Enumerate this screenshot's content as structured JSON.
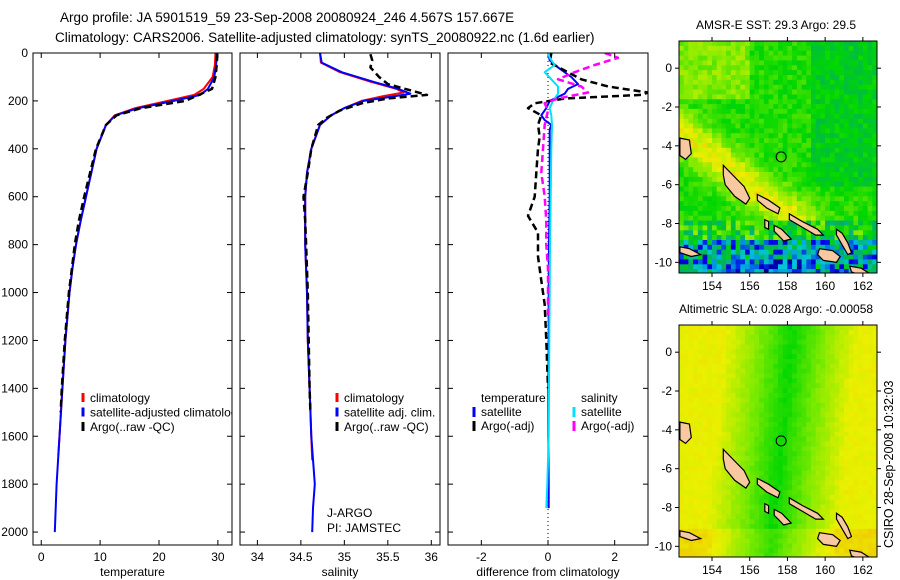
{
  "figure": {
    "title_line1": "Argo profile: JA 5901519_59 23-Sep-2008 20080924_246 4.567S 157.667E",
    "title_line2": "Climatology: CARS2006. Satellite-adjusted climatology: synTS_20080922.nc (1.6d earlier)",
    "side_stamp": "CSIRO 28-Sep-2008 10:32:03",
    "credit_line1": "J-ARGO",
    "credit_line2": "PI: JAMSTEC"
  },
  "colors": {
    "climatology": "#ff0000",
    "satellite": "#0000ff",
    "argo": "#000000",
    "salinity_satellite": "#00e0ff",
    "salinity_argo": "#ff00ff",
    "land": "#f8c8a0"
  },
  "chart_data": [
    {
      "type": "line",
      "name": "temperature-profile",
      "xlabel": "temperature",
      "ylabel": "",
      "xlim": [
        -1.4,
        32.4
      ],
      "ylim": [
        0,
        2054
      ],
      "y_reversed": true,
      "xticks": [
        0,
        10,
        20,
        30
      ],
      "yticks": [
        0,
        200,
        400,
        600,
        800,
        1000,
        1200,
        1400,
        1600,
        1800,
        2000
      ],
      "legend": [
        "climatology",
        "satellite-adjusted climatology",
        "Argo(..raw -QC)"
      ],
      "series": [
        {
          "name": "climatology",
          "color": "#ff0000",
          "style": "solid",
          "depth": [
            0,
            50,
            100,
            150,
            175,
            200,
            230,
            260,
            300,
            400,
            500,
            600,
            700,
            800,
            900,
            1000,
            1200,
            1400,
            1600,
            1680
          ],
          "value": [
            29.6,
            29.5,
            29.1,
            27.6,
            26.0,
            21.5,
            16,
            12.5,
            11,
            9.4,
            8.5,
            7.6,
            6.7,
            5.9,
            5.3,
            4.8,
            4.1,
            3.6,
            3.1,
            2.9
          ]
        },
        {
          "name": "satellite-adjusted climatology",
          "color": "#0000ff",
          "style": "solid",
          "depth": [
            0,
            50,
            100,
            150,
            175,
            200,
            230,
            260,
            300,
            400,
            500,
            600,
            700,
            800,
            900,
            1000,
            1200,
            1400,
            1600,
            1800,
            2000
          ],
          "value": [
            29.8,
            29.7,
            29.4,
            28.3,
            27.0,
            22.5,
            16.5,
            12.6,
            11,
            9.4,
            8.5,
            7.6,
            6.7,
            5.9,
            5.3,
            4.8,
            4.1,
            3.6,
            3.1,
            2.6,
            2.3
          ]
        },
        {
          "name": "Argo(..raw -QC)",
          "color": "#000000",
          "style": "dashed",
          "depth": [
            5,
            50,
            100,
            150,
            200,
            230,
            260,
            300,
            400,
            500,
            600,
            700,
            800,
            900,
            1000,
            1200,
            1400,
            1500
          ],
          "value": [
            29.9,
            29.8,
            29.6,
            29.0,
            24.5,
            17,
            12.8,
            11,
            9.3,
            8.3,
            7.3,
            6.4,
            5.7,
            5.2,
            4.7,
            4.0,
            3.5,
            3.3
          ]
        }
      ]
    },
    {
      "type": "line",
      "name": "salinity-profile",
      "xlabel": "salinity",
      "xlim": [
        33.8,
        36.1
      ],
      "ylim": [
        0,
        2054
      ],
      "y_reversed": true,
      "xticks": [
        34,
        34.5,
        35,
        35.5,
        36
      ],
      "legend": [
        "climatology",
        "satellite adj. clim.",
        "Argo(..raw -QC)"
      ],
      "series": [
        {
          "name": "climatology",
          "color": "#ff0000",
          "style": "solid",
          "depth": [
            0,
            40,
            80,
            120,
            150,
            165,
            180,
            200,
            230,
            260,
            300,
            400,
            500,
            600,
            800,
            1000,
            1200,
            1400,
            1600,
            1700
          ],
          "value": [
            34.72,
            34.73,
            34.95,
            35.3,
            35.6,
            35.68,
            35.45,
            35.2,
            35.0,
            34.85,
            34.72,
            34.62,
            34.57,
            34.55,
            34.55,
            34.57,
            34.58,
            34.6,
            34.62,
            34.63
          ]
        },
        {
          "name": "satellite adj. clim.",
          "color": "#0000ff",
          "style": "solid",
          "depth": [
            0,
            40,
            80,
            120,
            150,
            170,
            185,
            200,
            230,
            260,
            300,
            400,
            500,
            600,
            800,
            1000,
            1200,
            1400,
            1600,
            1800,
            1900,
            2000
          ],
          "value": [
            34.72,
            34.74,
            34.97,
            35.33,
            35.62,
            35.76,
            35.5,
            35.22,
            35.0,
            34.85,
            34.72,
            34.62,
            34.57,
            34.55,
            34.55,
            34.57,
            34.58,
            34.6,
            34.62,
            34.66,
            34.64,
            34.63
          ]
        },
        {
          "name": "Argo(..raw -QC)",
          "color": "#000000",
          "style": "dashed",
          "depth": [
            5,
            30,
            60,
            100,
            130,
            160,
            175,
            190,
            210,
            240,
            270,
            300,
            400,
            500,
            600,
            700,
            800,
            1000,
            1200,
            1400,
            1500
          ],
          "value": [
            35.3,
            35.32,
            35.3,
            35.4,
            35.5,
            35.8,
            35.95,
            35.5,
            35.2,
            34.95,
            34.8,
            34.7,
            34.62,
            34.58,
            34.53,
            34.55,
            34.56,
            34.58,
            34.59,
            34.6,
            34.61
          ]
        }
      ]
    },
    {
      "type": "line",
      "name": "difference-profile",
      "xlabel": "difference from climatology",
      "xlim": [
        -3.0,
        3.0
      ],
      "ylim": [
        0,
        2054
      ],
      "y_reversed": true,
      "xticks": [
        -2,
        0,
        2
      ],
      "legend_headers": [
        "temperature",
        "salinity"
      ],
      "legend": [
        "satellite",
        "Argo(-adj)",
        "satellite",
        "Argo(-adj)"
      ],
      "series": [
        {
          "name": "temperature satellite",
          "color": "#0000ff",
          "style": "solid",
          "depth": [
            0,
            30,
            60,
            100,
            130,
            150,
            170,
            190,
            200,
            230,
            260,
            280,
            300,
            320,
            400,
            600,
            800,
            1000,
            1200,
            1400,
            1600,
            1800,
            1900
          ],
          "value": [
            0,
            0.05,
            0.3,
            0.7,
            0.9,
            0.6,
            0.5,
            0.2,
            0.05,
            -0.05,
            -0.2,
            -0.1,
            0.1,
            0.05,
            0.05,
            0.05,
            0.03,
            0.02,
            0.02,
            0.01,
            0.01,
            0.02,
            0.02
          ]
        },
        {
          "name": "temperature Argo(-adj)",
          "color": "#000000",
          "style": "dashed",
          "depth": [
            0,
            40,
            80,
            110,
            140,
            165,
            175,
            190,
            210,
            230,
            260,
            300,
            350,
            400,
            500,
            600,
            680,
            750,
            850,
            950,
            1050,
            1200,
            1400
          ],
          "value": [
            0.1,
            0.05,
            0.6,
            1.0,
            1.8,
            3.0,
            2.8,
            0.5,
            -0.4,
            -0.6,
            -0.2,
            -0.3,
            -0.25,
            -0.3,
            -0.35,
            -0.4,
            -0.6,
            -0.3,
            -0.3,
            -0.2,
            -0.1,
            -0.05,
            0
          ]
        },
        {
          "name": "salinity satellite",
          "color": "#00e0ff",
          "style": "solid",
          "depth": [
            0,
            20,
            50,
            80,
            110,
            140,
            170,
            200,
            230,
            260,
            300,
            400,
            600,
            800,
            1000,
            1200,
            1400,
            1600,
            1800,
            1900
          ],
          "value": [
            0,
            0.05,
            0.2,
            -0.1,
            0.1,
            0.3,
            0.3,
            0.15,
            0.05,
            0.1,
            0.12,
            0.1,
            0.08,
            0.06,
            0.05,
            0.04,
            0.03,
            0.02,
            -0.02,
            -0.05
          ]
        },
        {
          "name": "salinity Argo(-adj)",
          "color": "#ff00ff",
          "style": "dashed",
          "depth": [
            0,
            20,
            50,
            80,
            110,
            140,
            165,
            190,
            210,
            240,
            300,
            400,
            500,
            600,
            700,
            800,
            900,
            1000,
            1100
          ],
          "value": [
            1.7,
            2.1,
            1.4,
            0.8,
            0.3,
            1.0,
            1.2,
            0.3,
            -0.1,
            0.0,
            -0.1,
            -0.15,
            -0.2,
            -0.1,
            -0.05,
            -0.05,
            0,
            0,
            0
          ]
        }
      ]
    },
    {
      "type": "heatmap",
      "name": "sst-map",
      "title": "AMSR-E SST: 29.3 Argo: 29.5",
      "xlim": [
        152.25,
        162.75
      ],
      "ylim": [
        -10.55,
        1.4
      ],
      "xticks": [
        154,
        156,
        158,
        160,
        162
      ],
      "yticks": [
        0,
        -2,
        -4,
        -6,
        -8,
        -10
      ],
      "marker": {
        "lon": 157.667,
        "lat": -4.567
      }
    },
    {
      "type": "heatmap",
      "name": "sla-map",
      "title": "Altimetric SLA: 0.028 Argo: -0.00058",
      "xlim": [
        152.25,
        162.75
      ],
      "ylim": [
        -10.55,
        1.4
      ],
      "xticks": [
        154,
        156,
        158,
        160,
        162
      ],
      "yticks": [
        0,
        -2,
        -4,
        -6,
        -8,
        -10
      ],
      "marker": {
        "lon": 157.667,
        "lat": -4.567
      }
    }
  ]
}
